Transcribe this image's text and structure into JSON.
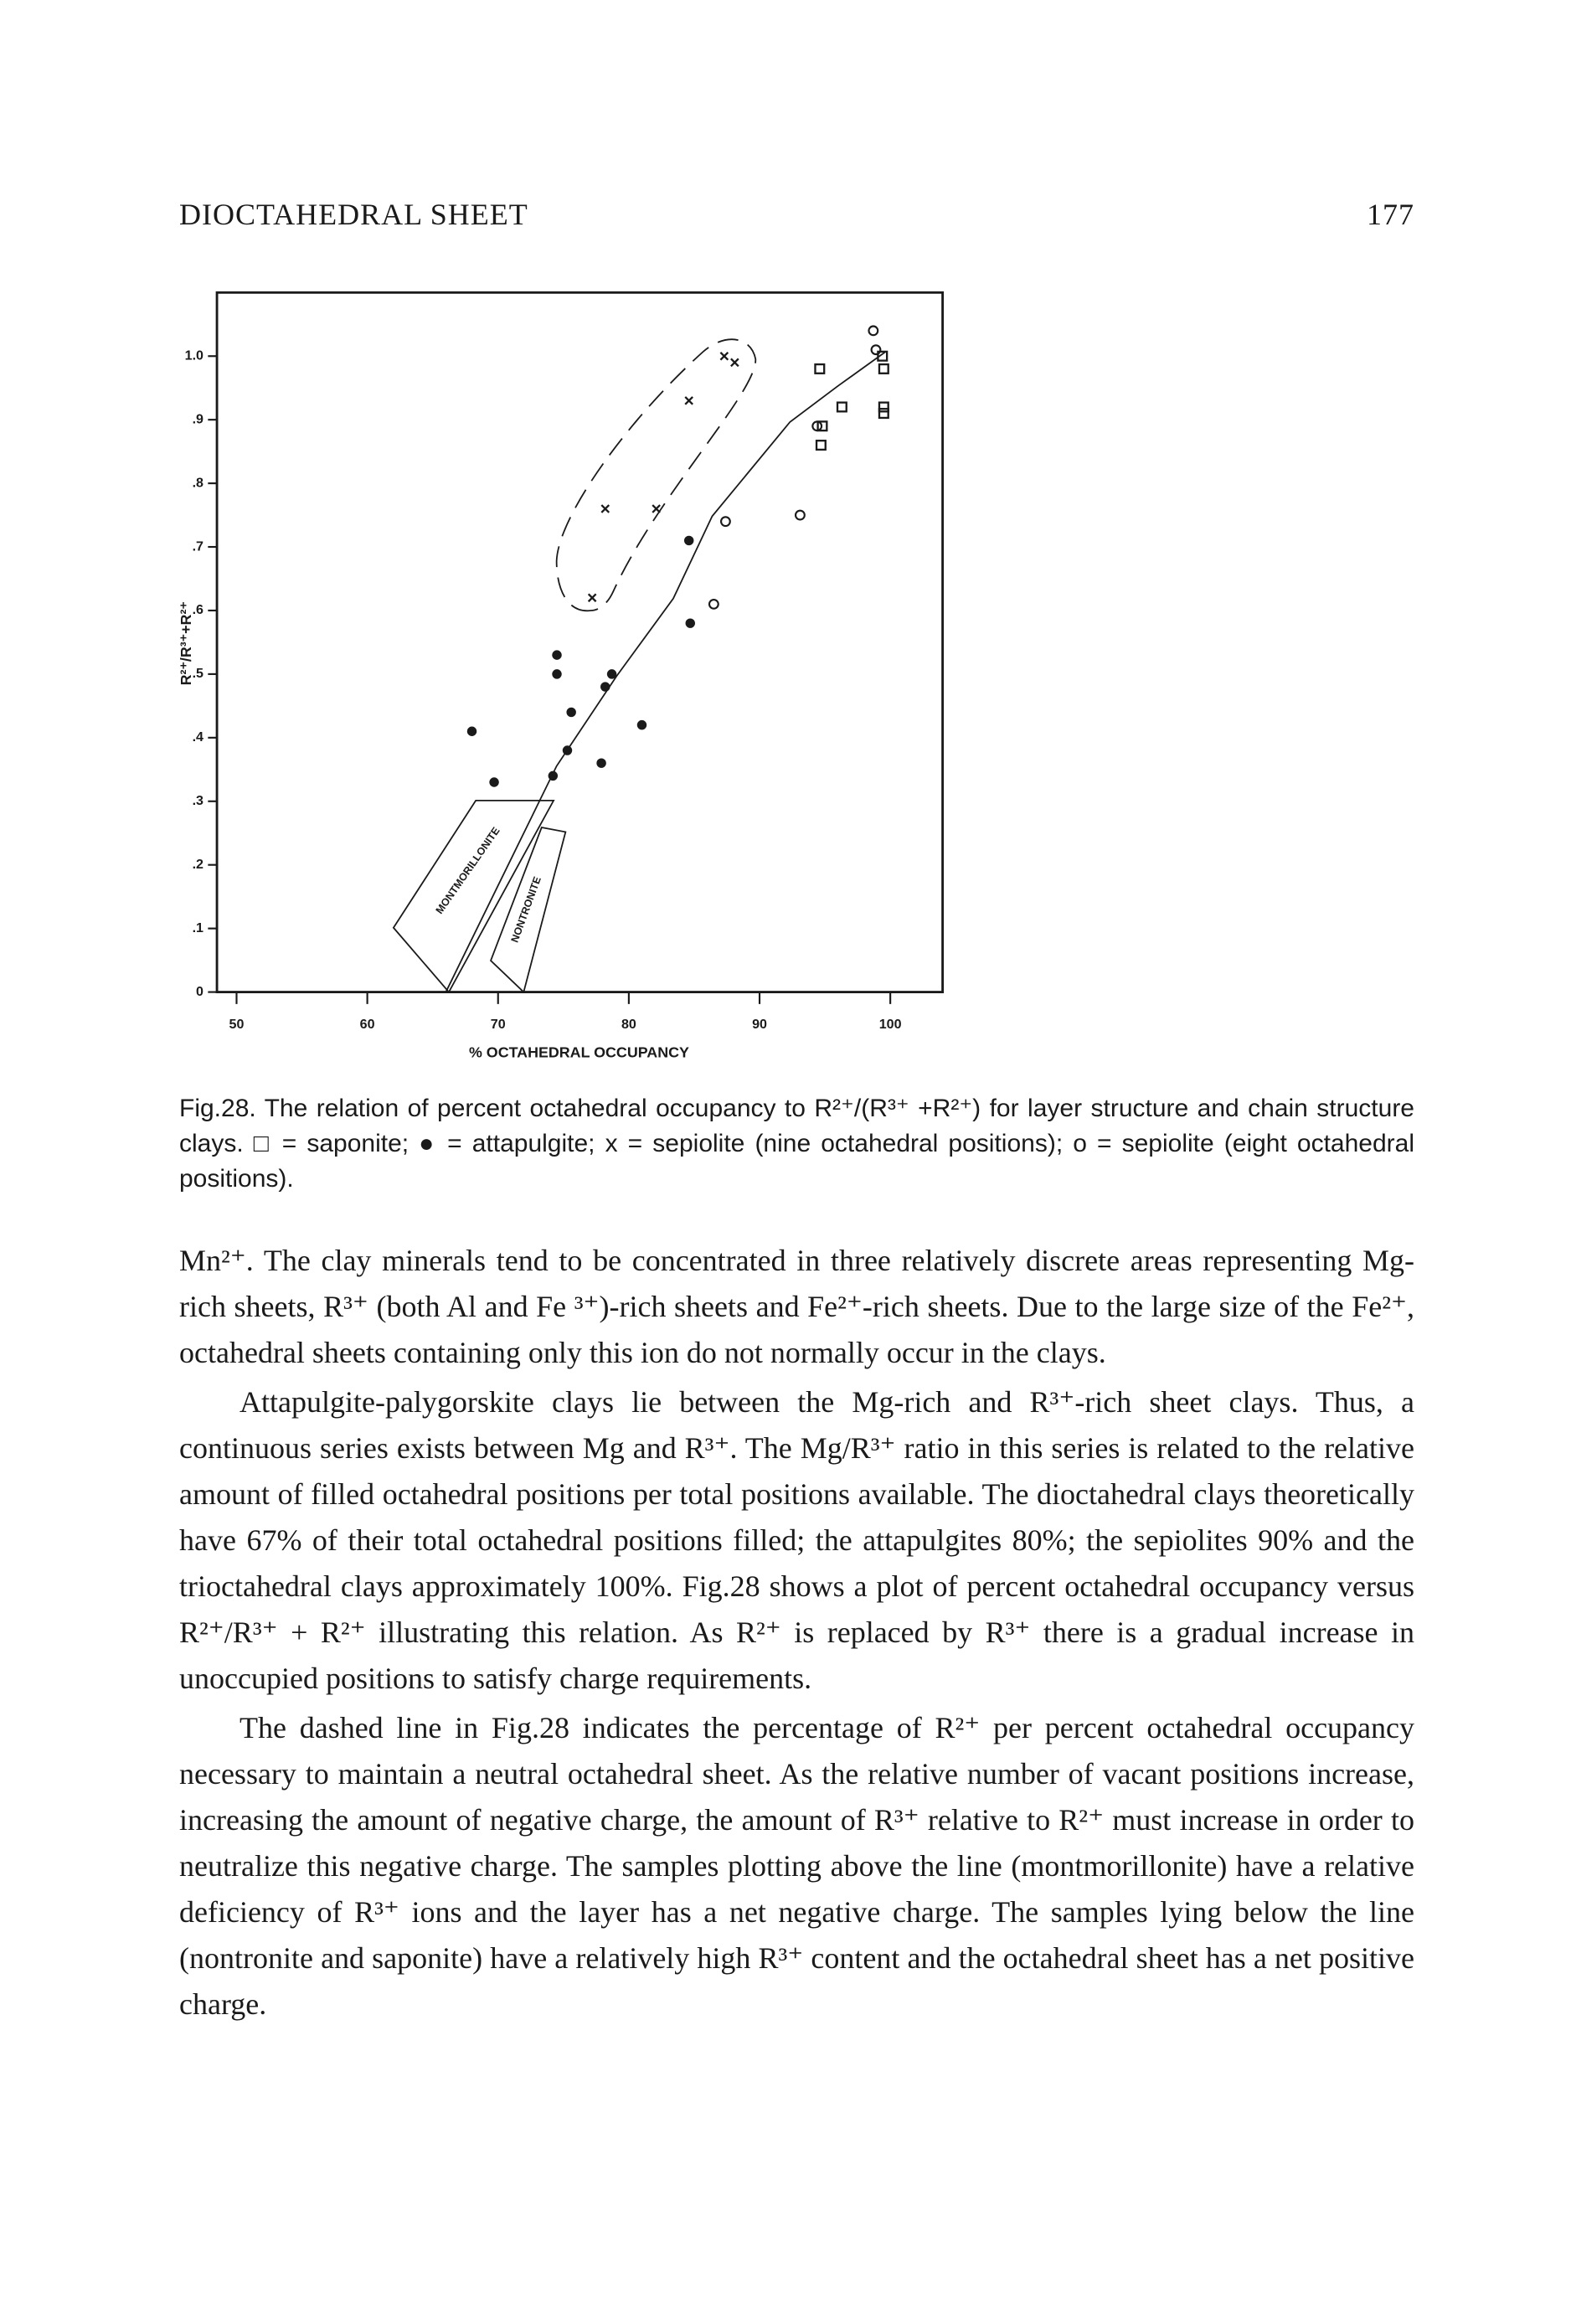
{
  "header": {
    "title": "DIOCTAHEDRAL SHEET",
    "page_number": "177"
  },
  "figure": {
    "chart_data": {
      "type": "scatter",
      "x_label": "% OCTAHEDRAL OCCUPANCY",
      "y_label": "R²⁺/R³⁺+R²⁺",
      "xlim": [
        48.5,
        104
      ],
      "ylim": [
        0,
        1.1
      ],
      "xticks": [
        50,
        60,
        70,
        80,
        90,
        100
      ],
      "yticks": [
        0,
        {
          "value": 0.1,
          "label": ".1"
        },
        {
          "value": 0.2,
          "label": ".2"
        },
        {
          "value": 0.3,
          "label": ".3"
        },
        {
          "value": 0.4,
          "label": ".4"
        },
        {
          "value": 0.5,
          "label": ".5"
        },
        {
          "value": 0.6,
          "label": ".6"
        },
        {
          "value": 0.7,
          "label": ".7"
        },
        {
          "value": 0.8,
          "label": ".8"
        },
        {
          "value": 0.9,
          "label": ".9"
        },
        {
          "value": 1,
          "label": "1.0"
        }
      ],
      "grid": false,
      "annotations": [
        {
          "text": "MONTMORILLONITE"
        },
        {
          "text": "NONTRONITE"
        }
      ],
      "series": [
        {
          "marker": "square",
          "color": "#1a1a1a",
          "x": [
            94.6,
            94.8,
            94.7,
            96.3,
            99.5,
            99.5,
            99.5,
            99.4
          ],
          "values": [
            0.98,
            0.89,
            0.86,
            0.92,
            0.98,
            0.92,
            0.91,
            1.0
          ]
        },
        {
          "marker": "dot",
          "color": "#1a1a1a",
          "x": [
            68.0,
            69.7,
            74.5,
            74.5,
            75.6,
            75.3,
            74.2,
            78.2,
            78.7,
            77.9,
            81.0,
            84.6,
            84.7
          ],
          "values": [
            0.41,
            0.33,
            0.53,
            0.5,
            0.44,
            0.38,
            0.34,
            0.48,
            0.5,
            0.36,
            0.42,
            0.71,
            0.58
          ]
        },
        {
          "marker": "cross",
          "color": "#1a1a1a",
          "x": [
            87.3,
            88.1,
            84.6,
            78.2,
            82.1,
            77.2
          ],
          "values": [
            1.0,
            0.99,
            0.93,
            0.76,
            0.76,
            0.62
          ]
        },
        {
          "marker": "circle",
          "color": "#1a1a1a",
          "x": [
            86.5,
            87.4,
            93.1,
            94.4,
            98.7,
            98.9
          ],
          "values": [
            0.61,
            0.74,
            0.75,
            0.89,
            1.04,
            1.01
          ]
        }
      ]
    },
    "caption": "Fig.28. The relation of percent octahedral occupancy to R²⁺/(R³⁺ +R²⁺) for layer structure and chain structure clays. □ = saponite; ● = attapulgite; x = sepiolite (nine octahedral positions); o = sepiolite (eight octahedral positions)."
  },
  "paragraphs": [
    "Mn²⁺. The clay minerals tend to be concentrated in three relatively discrete areas representing Mg-rich sheets, R³⁺ (both Al and Fe ³⁺)-rich sheets and Fe²⁺-rich sheets. Due to the large size of the Fe²⁺, octahedral sheets containing only this ion do not normally occur in the clays.",
    "Attapulgite-palygorskite clays lie between the Mg-rich and R³⁺-rich sheet clays. Thus, a continuous series exists between Mg and R³⁺. The Mg/R³⁺ ratio in this series is related to the relative amount of filled octahedral positions per total positions available. The dioctahedral clays theoretically have 67% of their total octahedral positions filled; the attapulgites 80%; the sepiolites 90% and the trioctahedral clays approximately 100%. Fig.28 shows a plot of percent octahedral occupancy versus R²⁺/R³⁺ + R²⁺ illustrating this relation. As R²⁺ is replaced by R³⁺ there is a gradual increase in unoccupied positions to satisfy charge requirements.",
    "The dashed line in Fig.28 indicates the percentage of R²⁺ per percent octahedral occupancy necessary to maintain a neutral octahedral sheet. As the relative number of vacant positions increase, increasing the amount of negative charge, the amount of R³⁺ relative to R²⁺ must increase in order to neutralize this negative charge. The samples plotting above the line (montmorillonite) have a relative deficiency of R³⁺ ions and the layer has a net negative charge. The samples lying below the line (nontronite and saponite) have a relatively high R³⁺ content and the octahedral sheet has a net positive charge."
  ]
}
